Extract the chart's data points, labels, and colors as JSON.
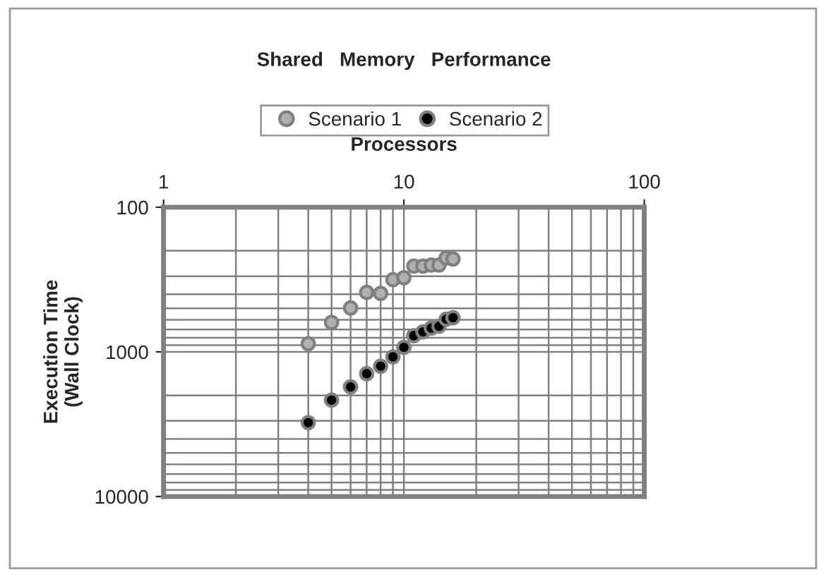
{
  "chart_data": {
    "type": "scatter",
    "title": "Shared   Memory   Performance",
    "xlabel": "Processors",
    "ylabel": "Execution Time\n(Wall Clock)",
    "log": "xy",
    "xlim": [
      1,
      100
    ],
    "xticks": [
      1,
      10,
      100
    ],
    "ylim": [
      10000,
      100
    ],
    "yticks": [
      100,
      1000,
      10000
    ],
    "grid": true,
    "legend": "top",
    "marker": "circle",
    "series": [
      {
        "name": "Scenario 1",
        "color": "#b0b0b0",
        "x": [
          4,
          5,
          6,
          7,
          8,
          9,
          10,
          11,
          12,
          13,
          14,
          15,
          16
        ],
        "values": [
          877,
          626,
          497,
          388,
          394,
          317,
          307,
          255,
          255,
          251,
          251,
          224,
          228
        ]
      },
      {
        "name": "Scenario 2",
        "color": "#000000",
        "x": [
          4,
          5,
          6,
          7,
          8,
          9,
          10,
          11,
          12,
          13,
          14,
          15,
          16
        ],
        "values": [
          3085,
          2154,
          1747,
          1416,
          1257,
          1082,
          931,
          773,
          727,
          685,
          665,
          594,
          581
        ]
      }
    ]
  }
}
